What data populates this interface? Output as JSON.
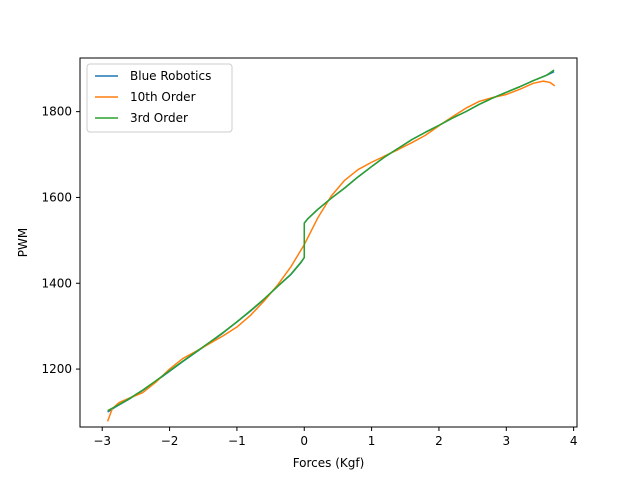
{
  "chart_data": {
    "type": "line",
    "xlabel": "Forces (Kgf)",
    "ylabel": "PWM",
    "xlim": [
      -3.33,
      4.05
    ],
    "ylim": [
      1065,
      1925
    ],
    "xticks": [
      -3,
      -2,
      -1,
      0,
      1,
      2,
      3,
      4
    ],
    "yticks": [
      1200,
      1400,
      1600,
      1800
    ],
    "xtick_labels": [
      "−3",
      "−2",
      "−1",
      "0",
      "1",
      "2",
      "3",
      "4"
    ],
    "ytick_labels": [
      "1200",
      "1400",
      "1600",
      "1800"
    ],
    "grid": false,
    "legend_position": "top-left",
    "series": [
      {
        "name": "Blue Robotics",
        "color": "#1f77b4",
        "x": [
          -2.92,
          -2.8,
          -2.6,
          -2.4,
          -2.2,
          -2.0,
          -1.8,
          -1.6,
          -1.4,
          -1.2,
          -1.0,
          -0.8,
          -0.6,
          -0.4,
          -0.2,
          -0.05,
          0.0,
          0.0,
          0.05,
          0.2,
          0.4,
          0.6,
          0.8,
          1.0,
          1.2,
          1.4,
          1.6,
          1.8,
          2.0,
          2.2,
          2.4,
          2.6,
          2.8,
          3.0,
          3.2,
          3.4,
          3.6,
          3.71
        ],
        "y": [
          1100,
          1112,
          1130,
          1150,
          1172,
          1195,
          1218,
          1240,
          1262,
          1285,
          1310,
          1335,
          1362,
          1392,
          1420,
          1448,
          1460,
          1540,
          1550,
          1572,
          1598,
          1622,
          1648,
          1672,
          1695,
          1715,
          1735,
          1752,
          1768,
          1785,
          1800,
          1817,
          1832,
          1845,
          1858,
          1872,
          1885,
          1893
        ]
      },
      {
        "name": "10th Order",
        "color": "#ff7f0e",
        "x": [
          -2.92,
          -2.85,
          -2.75,
          -2.6,
          -2.4,
          -2.2,
          -2.0,
          -1.8,
          -1.6,
          -1.4,
          -1.2,
          -1.0,
          -0.8,
          -0.6,
          -0.4,
          -0.2,
          0.0,
          0.2,
          0.4,
          0.6,
          0.8,
          1.0,
          1.2,
          1.4,
          1.6,
          1.8,
          2.0,
          2.2,
          2.4,
          2.6,
          2.8,
          3.0,
          3.2,
          3.4,
          3.55,
          3.65,
          3.72
        ],
        "y": [
          1078,
          1108,
          1122,
          1132,
          1145,
          1170,
          1200,
          1225,
          1242,
          1260,
          1278,
          1298,
          1325,
          1358,
          1395,
          1438,
          1490,
          1552,
          1603,
          1640,
          1665,
          1682,
          1697,
          1712,
          1728,
          1745,
          1767,
          1788,
          1808,
          1824,
          1833,
          1840,
          1852,
          1866,
          1871,
          1868,
          1860
        ]
      },
      {
        "name": "3rd Order",
        "color": "#2ca02c",
        "x": [
          -2.92,
          -2.8,
          -2.6,
          -2.4,
          -2.2,
          -2.0,
          -1.8,
          -1.6,
          -1.4,
          -1.2,
          -1.0,
          -0.8,
          -0.6,
          -0.4,
          -0.2,
          -0.05,
          0.0,
          0.0,
          0.05,
          0.2,
          0.4,
          0.6,
          0.8,
          1.0,
          1.2,
          1.4,
          1.6,
          1.8,
          2.0,
          2.2,
          2.4,
          2.6,
          2.8,
          3.0,
          3.2,
          3.4,
          3.6,
          3.71
        ],
        "y": [
          1103,
          1113,
          1131,
          1151,
          1173,
          1196,
          1219,
          1241,
          1263,
          1286,
          1310,
          1336,
          1363,
          1392,
          1421,
          1449,
          1460,
          1540,
          1550,
          1572,
          1598,
          1622,
          1648,
          1672,
          1695,
          1715,
          1735,
          1752,
          1768,
          1785,
          1800,
          1817,
          1832,
          1845,
          1858,
          1872,
          1885,
          1897
        ]
      }
    ]
  }
}
